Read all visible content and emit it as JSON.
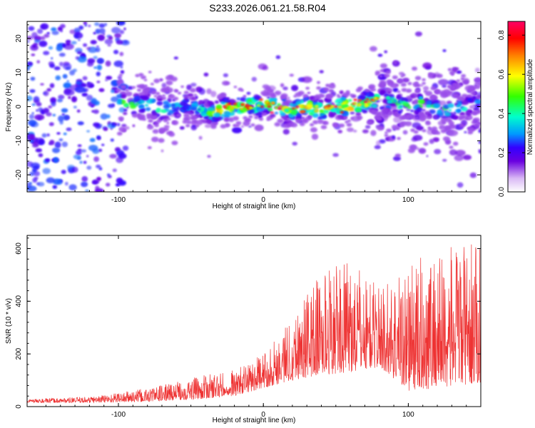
{
  "figure_title": "S233.2026.061.21.58.R04",
  "chart_data": [
    {
      "type": "heatmap",
      "title": "S233.2026.061.21.58.R04",
      "xlabel": "Height of straight line (km)",
      "ylabel": "Frequency (Hz)",
      "xlim": [
        -163,
        150
      ],
      "ylim": [
        -25,
        25
      ],
      "xticks": [
        -100,
        0,
        100
      ],
      "yticks": [
        -20,
        -10,
        0,
        10,
        20
      ],
      "colorbar": {
        "label": "Normalized spectral amplitude",
        "range": [
          0,
          0.87
        ],
        "ticks": [
          0.0,
          0.2,
          0.4,
          0.6,
          0.8
        ],
        "colors": [
          "#ffffff",
          "#d9b8f5",
          "#6a00e0",
          "#3300ff",
          "#0099ff",
          "#00ffcc",
          "#33ff00",
          "#ffff00",
          "#ff8000",
          "#ff0000",
          "#ff0066"
        ]
      },
      "description_series": [
        {
          "name": "central_band_x",
          "values": [
            -100,
            -90,
            -80,
            -70,
            -60,
            -50,
            -40,
            -30,
            -20,
            -10,
            0,
            10,
            20,
            30,
            40,
            50,
            60,
            70,
            80,
            90,
            100,
            110,
            120,
            130,
            140,
            148
          ]
        },
        {
          "name": "central_band_freq_hz",
          "values": [
            1,
            0.5,
            1,
            -1,
            0,
            0.5,
            -2,
            -1,
            0,
            0.5,
            0.5,
            0,
            -1,
            0,
            -1,
            0,
            0,
            1,
            2,
            1,
            0,
            1,
            -1,
            -1,
            0,
            1
          ]
        },
        {
          "name": "peak_amplitude",
          "values": [
            0.55,
            0.5,
            0.45,
            0.55,
            0.4,
            0.35,
            0.45,
            0.85,
            0.6,
            0.7,
            0.55,
            0.65,
            0.6,
            0.7,
            0.65,
            0.6,
            0.8,
            0.65,
            0.6,
            0.5,
            0.5,
            0.55,
            0.5,
            0.45,
            0.4,
            0.4
          ]
        }
      ]
    },
    {
      "type": "line",
      "xlabel": "Height of straight line (km)",
      "ylabel": "SNR (10 * v/v)",
      "xlim": [
        -163,
        150
      ],
      "ylim": [
        0,
        650
      ],
      "xticks": [
        -100,
        0,
        100
      ],
      "yticks": [
        0,
        200,
        400,
        600
      ],
      "line_color": "#ee3333",
      "series": [
        {
          "name": "snr_envelope_low",
          "x": [
            -163,
            -120,
            -80,
            -40,
            -20,
            0,
            20,
            40,
            60,
            80,
            100,
            120,
            150
          ],
          "values": [
            15,
            15,
            18,
            30,
            40,
            70,
            100,
            120,
            130,
            150,
            60,
            70,
            90
          ]
        },
        {
          "name": "snr_envelope_high",
          "x": [
            -163,
            -120,
            -80,
            -40,
            -20,
            0,
            20,
            40,
            60,
            80,
            100,
            120,
            150
          ],
          "values": [
            28,
            38,
            70,
            120,
            140,
            200,
            350,
            520,
            550,
            460,
            540,
            600,
            620
          ]
        }
      ]
    }
  ]
}
